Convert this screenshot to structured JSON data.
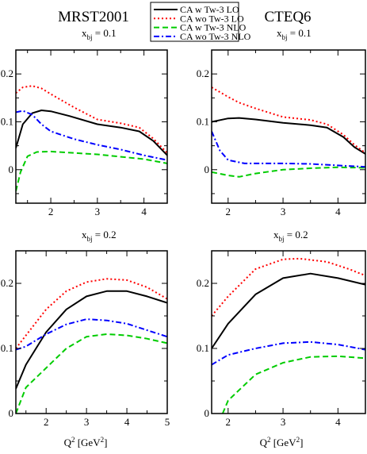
{
  "legend": [
    {
      "label": "CA w Tw-3 LO",
      "color": "#000000",
      "dash": "solid"
    },
    {
      "label": "CA wo Tw-3 LO",
      "color": "#ff0000",
      "dash": "dotted"
    },
    {
      "label": "CA w Tw-3 NLO",
      "color": "#00cc00",
      "dash": "dashed"
    },
    {
      "label": "CA wo Tw-3 NLO",
      "color": "#0000ff",
      "dash": "dashdot"
    }
  ],
  "column_titles": [
    "MRST2001",
    "CTEQ6"
  ],
  "x_axis_label": "Q² [GeV²]",
  "chart_data": [
    {
      "type": "line",
      "panel": "top-left",
      "sublabel": "x_bj = 0.1",
      "xlim": [
        1.25,
        4.5
      ],
      "ylim": [
        -0.07,
        0.25
      ],
      "xticks": [
        2,
        3,
        4
      ],
      "yticks": [
        0,
        0.1,
        0.2
      ],
      "xlabel": "",
      "series": [
        {
          "name": "CA w Tw-3 LO",
          "points": [
            [
              1.25,
              0.045
            ],
            [
              1.4,
              0.095
            ],
            [
              1.6,
              0.118
            ],
            [
              1.8,
              0.124
            ],
            [
              2.0,
              0.122
            ],
            [
              2.4,
              0.112
            ],
            [
              3.0,
              0.095
            ],
            [
              3.5,
              0.088
            ],
            [
              3.9,
              0.08
            ],
            [
              4.2,
              0.06
            ],
            [
              4.5,
              0.03
            ]
          ]
        },
        {
          "name": "CA wo Tw-3 LO",
          "points": [
            [
              1.25,
              0.16
            ],
            [
              1.4,
              0.172
            ],
            [
              1.6,
              0.175
            ],
            [
              1.8,
              0.17
            ],
            [
              2.0,
              0.158
            ],
            [
              2.5,
              0.13
            ],
            [
              3.0,
              0.105
            ],
            [
              3.5,
              0.097
            ],
            [
              3.9,
              0.088
            ],
            [
              4.2,
              0.065
            ],
            [
              4.5,
              0.035
            ]
          ]
        },
        {
          "name": "CA w Tw-3 NLO",
          "points": [
            [
              1.25,
              -0.045
            ],
            [
              1.35,
              -0.005
            ],
            [
              1.5,
              0.028
            ],
            [
              1.7,
              0.037
            ],
            [
              2.0,
              0.038
            ],
            [
              3.0,
              0.032
            ],
            [
              4.0,
              0.022
            ],
            [
              4.5,
              0.013
            ]
          ]
        },
        {
          "name": "CA wo Tw-3 NLO",
          "points": [
            [
              1.25,
              0.12
            ],
            [
              1.4,
              0.123
            ],
            [
              1.6,
              0.115
            ],
            [
              1.8,
              0.095
            ],
            [
              2.0,
              0.08
            ],
            [
              2.5,
              0.064
            ],
            [
              3.0,
              0.052
            ],
            [
              3.5,
              0.042
            ],
            [
              4.0,
              0.03
            ],
            [
              4.5,
              0.02
            ]
          ]
        }
      ]
    },
    {
      "type": "line",
      "panel": "top-right",
      "sublabel": "x_bj = 0.1",
      "xlim": [
        1.7,
        4.5
      ],
      "ylim": [
        -0.07,
        0.25
      ],
      "xticks": [
        2,
        3,
        4
      ],
      "yticks": [
        0,
        0.1,
        0.2
      ],
      "xlabel": "",
      "series": [
        {
          "name": "CA w Tw-3 LO",
          "points": [
            [
              1.7,
              0.1
            ],
            [
              2.0,
              0.107
            ],
            [
              2.2,
              0.108
            ],
            [
              2.5,
              0.105
            ],
            [
              3.0,
              0.098
            ],
            [
              3.5,
              0.093
            ],
            [
              3.8,
              0.088
            ],
            [
              4.1,
              0.068
            ],
            [
              4.3,
              0.047
            ],
            [
              4.5,
              0.033
            ]
          ]
        },
        {
          "name": "CA wo Tw-3 LO",
          "points": [
            [
              1.7,
              0.172
            ],
            [
              2.0,
              0.152
            ],
            [
              2.2,
              0.14
            ],
            [
              2.5,
              0.128
            ],
            [
              3.0,
              0.11
            ],
            [
              3.5,
              0.104
            ],
            [
              3.8,
              0.095
            ],
            [
              4.1,
              0.073
            ],
            [
              4.3,
              0.052
            ],
            [
              4.5,
              0.035
            ]
          ]
        },
        {
          "name": "CA w Tw-3 NLO",
          "points": [
            [
              1.7,
              -0.005
            ],
            [
              2.0,
              -0.012
            ],
            [
              2.2,
              -0.015
            ],
            [
              2.5,
              -0.008
            ],
            [
              3.0,
              0.0
            ],
            [
              3.5,
              0.003
            ],
            [
              4.0,
              0.005
            ],
            [
              4.5,
              0.004
            ]
          ]
        },
        {
          "name": "CA wo Tw-3 NLO",
          "points": [
            [
              1.7,
              0.08
            ],
            [
              1.85,
              0.04
            ],
            [
              2.0,
              0.02
            ],
            [
              2.3,
              0.013
            ],
            [
              3.0,
              0.013
            ],
            [
              3.5,
              0.012
            ],
            [
              4.0,
              0.009
            ],
            [
              4.5,
              0.006
            ]
          ]
        }
      ]
    },
    {
      "type": "line",
      "panel": "bottom-left",
      "sublabel": "x_bj = 0.2",
      "xlim": [
        1.25,
        5.0
      ],
      "ylim": [
        0,
        0.25
      ],
      "xticks": [
        2,
        3,
        4,
        5
      ],
      "yticks": [
        0,
        0.1,
        0.2
      ],
      "xlabel": "Q² [GeV²]",
      "series": [
        {
          "name": "CA w Tw-3 LO",
          "points": [
            [
              1.25,
              0.038
            ],
            [
              1.5,
              0.075
            ],
            [
              2.0,
              0.125
            ],
            [
              2.5,
              0.16
            ],
            [
              3.0,
              0.18
            ],
            [
              3.5,
              0.188
            ],
            [
              4.0,
              0.188
            ],
            [
              4.5,
              0.18
            ],
            [
              5.0,
              0.17
            ]
          ]
        },
        {
          "name": "CA wo Tw-3 LO",
          "points": [
            [
              1.25,
              0.1
            ],
            [
              1.5,
              0.12
            ],
            [
              2.0,
              0.16
            ],
            [
              2.5,
              0.188
            ],
            [
              3.0,
              0.202
            ],
            [
              3.5,
              0.207
            ],
            [
              4.0,
              0.205
            ],
            [
              4.5,
              0.194
            ],
            [
              5.0,
              0.176
            ]
          ]
        },
        {
          "name": "CA w Tw-3 NLO",
          "points": [
            [
              1.25,
              0.0
            ],
            [
              1.5,
              0.04
            ],
            [
              2.0,
              0.07
            ],
            [
              2.5,
              0.1
            ],
            [
              3.0,
              0.118
            ],
            [
              3.5,
              0.122
            ],
            [
              4.0,
              0.12
            ],
            [
              4.5,
              0.115
            ],
            [
              5.0,
              0.108
            ]
          ]
        },
        {
          "name": "CA wo Tw-3 NLO",
          "points": [
            [
              1.25,
              0.098
            ],
            [
              1.5,
              0.103
            ],
            [
              2.0,
              0.122
            ],
            [
              2.5,
              0.137
            ],
            [
              3.0,
              0.145
            ],
            [
              3.5,
              0.143
            ],
            [
              4.0,
              0.138
            ],
            [
              4.5,
              0.128
            ],
            [
              5.0,
              0.118
            ]
          ]
        }
      ]
    },
    {
      "type": "line",
      "panel": "bottom-right",
      "sublabel": "x_bj = 0.2",
      "xlim": [
        1.7,
        4.5
      ],
      "ylim": [
        0,
        0.25
      ],
      "xticks": [
        2,
        3,
        4
      ],
      "yticks": [
        0,
        0.1,
        0.2
      ],
      "xlabel": "Q² [GeV²]",
      "series": [
        {
          "name": "CA w Tw-3 LO",
          "points": [
            [
              1.7,
              0.1
            ],
            [
              2.0,
              0.138
            ],
            [
              2.5,
              0.183
            ],
            [
              3.0,
              0.208
            ],
            [
              3.5,
              0.215
            ],
            [
              4.0,
              0.208
            ],
            [
              4.5,
              0.198
            ]
          ]
        },
        {
          "name": "CA wo Tw-3 LO",
          "points": [
            [
              1.7,
              0.15
            ],
            [
              2.0,
              0.18
            ],
            [
              2.5,
              0.222
            ],
            [
              3.0,
              0.237
            ],
            [
              3.3,
              0.238
            ],
            [
              3.8,
              0.233
            ],
            [
              4.2,
              0.222
            ],
            [
              4.5,
              0.212
            ]
          ]
        },
        {
          "name": "CA w Tw-3 NLO",
          "points": [
            [
              1.9,
              0.0
            ],
            [
              2.0,
              0.02
            ],
            [
              2.5,
              0.06
            ],
            [
              3.0,
              0.078
            ],
            [
              3.5,
              0.087
            ],
            [
              4.0,
              0.088
            ],
            [
              4.5,
              0.085
            ]
          ]
        },
        {
          "name": "CA wo Tw-3 NLO",
          "points": [
            [
              1.7,
              0.075
            ],
            [
              2.0,
              0.09
            ],
            [
              2.5,
              0.1
            ],
            [
              3.0,
              0.108
            ],
            [
              3.5,
              0.11
            ],
            [
              4.0,
              0.106
            ],
            [
              4.5,
              0.098
            ]
          ]
        }
      ]
    }
  ]
}
